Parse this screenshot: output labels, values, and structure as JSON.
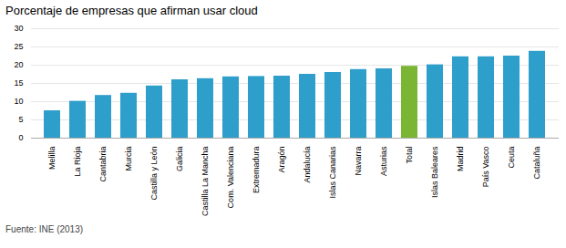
{
  "chart_data": {
    "type": "bar",
    "title": "Porcentaje de empresas que afirman usar cloud",
    "categories": [
      "Melilla",
      "La Rioja",
      "Cantabria",
      "Murcia",
      "Castilla y León",
      "Galicia",
      "Castilla La Mancha",
      "Com. Valenciana",
      "Extremadura",
      "Aragón",
      "Andalucía",
      "Islas Canarias",
      "Navarra",
      "Asturias",
      "Total",
      "Islas Baleares",
      "Madrid",
      "País Vasco",
      "Ceuta",
      "Cataluña"
    ],
    "values": [
      7.5,
      10.1,
      11.7,
      12.3,
      14.3,
      16.0,
      16.3,
      16.8,
      16.9,
      17.0,
      17.5,
      18.0,
      18.8,
      19.0,
      19.7,
      20.1,
      22.3,
      22.3,
      22.5,
      23.8
    ],
    "colors": [
      "#2e9eca",
      "#2e9eca",
      "#2e9eca",
      "#2e9eca",
      "#2e9eca",
      "#2e9eca",
      "#2e9eca",
      "#2e9eca",
      "#2e9eca",
      "#2e9eca",
      "#2e9eca",
      "#2e9eca",
      "#2e9eca",
      "#2e9eca",
      "#7ab534",
      "#2e9eca",
      "#2e9eca",
      "#2e9eca",
      "#2e9eca",
      "#2e9eca"
    ],
    "ylim": [
      0,
      30
    ],
    "yticks": [
      0,
      5,
      10,
      15,
      20,
      25,
      30
    ],
    "grid": true,
    "annotations": [
      "Fuente: INE (2013)"
    ]
  }
}
